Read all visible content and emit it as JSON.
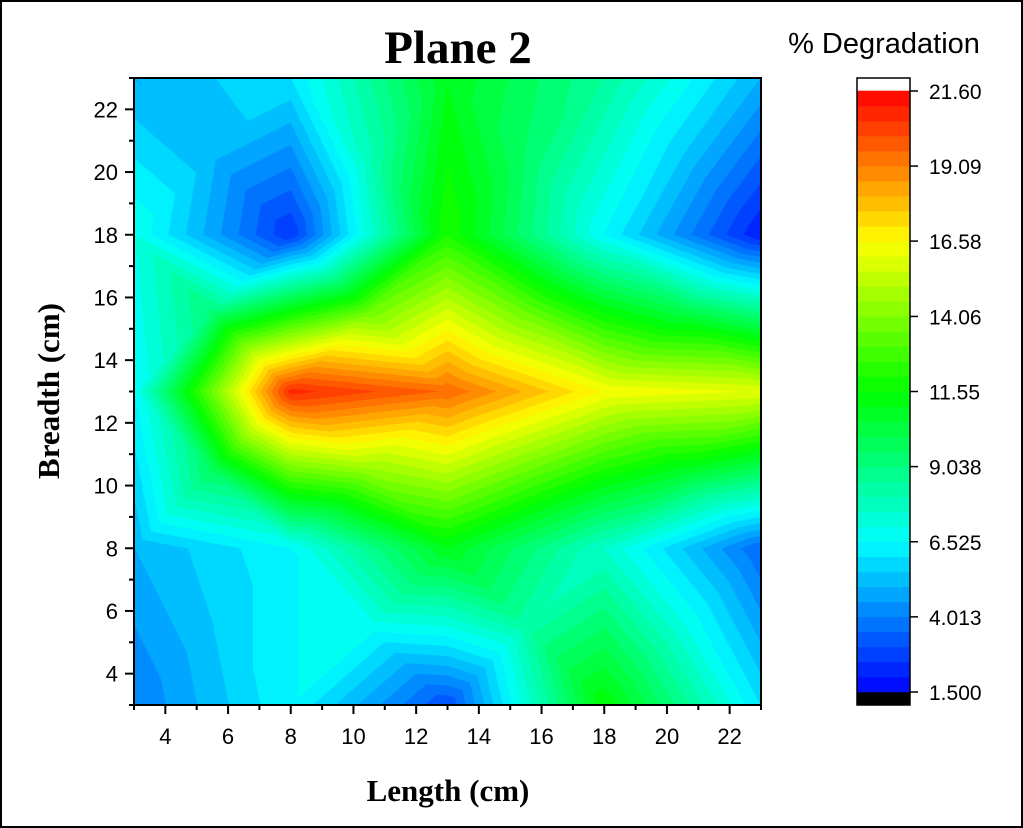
{
  "chart_data": {
    "type": "heatmap",
    "title": "Plane 2",
    "xlabel": "Length (cm)",
    "ylabel": "Breadth (cm)",
    "xlim": [
      3,
      23
    ],
    "ylim": [
      3,
      23
    ],
    "x_ticks": [
      4,
      6,
      8,
      10,
      12,
      14,
      16,
      18,
      20,
      22
    ],
    "y_ticks": [
      4,
      6,
      8,
      10,
      12,
      14,
      16,
      18,
      20,
      22
    ],
    "x_tick_labels": [
      "4",
      "6",
      "8",
      "10",
      "12",
      "14",
      "16",
      "18",
      "20",
      "22"
    ],
    "y_tick_labels": [
      "4",
      "6",
      "8",
      "10",
      "12",
      "14",
      "16",
      "18",
      "20",
      "22"
    ],
    "x": [
      3,
      8,
      13,
      18,
      23
    ],
    "y": [
      3,
      8,
      13,
      18,
      23
    ],
    "z": [
      [
        4.0,
        6.5,
        3.0,
        11.5,
        6.0
      ],
      [
        5.0,
        6.5,
        11.0,
        7.5,
        3.5
      ],
      [
        6.5,
        20.8,
        19.5,
        16.5,
        16.0
      ],
      [
        7.0,
        2.5,
        12.0,
        6.5,
        2.0
      ],
      [
        5.0,
        6.0,
        11.0,
        8.5,
        5.0
      ]
    ],
    "colorbar": {
      "title": "% Degradation",
      "min": 1.5,
      "max": 21.6,
      "tick_values": [
        21.6,
        19.09,
        16.58,
        14.06,
        11.55,
        9.038,
        6.525,
        4.013,
        1.5
      ],
      "tick_labels": [
        "21.60",
        "19.09",
        "16.58",
        "14.06",
        "11.55",
        "9.038",
        "6.525",
        "4.013",
        "1.500"
      ],
      "levels": 40,
      "colormap": [
        "#000000",
        "#0000ff",
        "#00ffff",
        "#00ff00",
        "#ffff00",
        "#ff0000",
        "#ffffff"
      ]
    }
  }
}
